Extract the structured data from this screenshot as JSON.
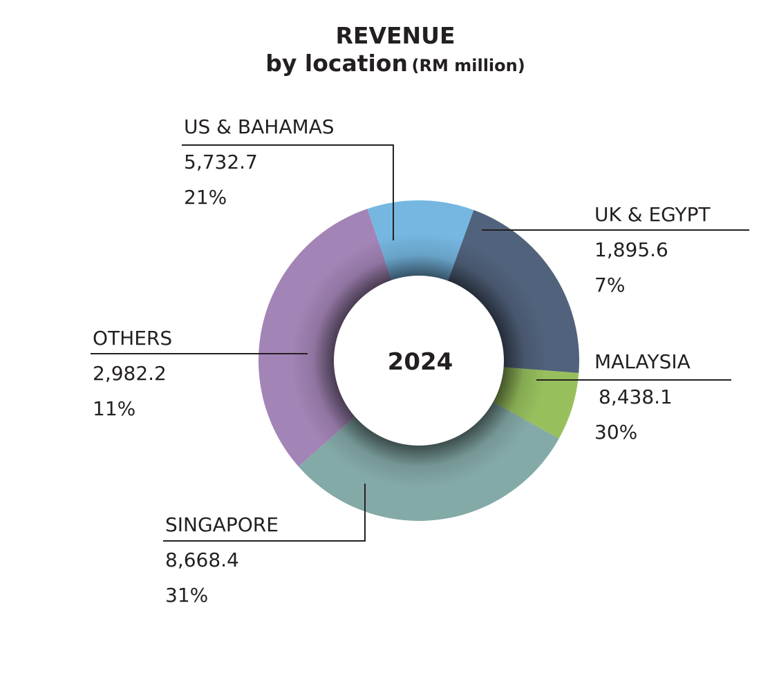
{
  "chart_data": {
    "type": "pie",
    "variant": "donut",
    "title": "REVENUE",
    "subtitle": "by location",
    "unit": "(RM million)",
    "center_label": "2024",
    "slices": [
      {
        "label": "US & BAHAMAS",
        "value": 5732.7,
        "value_text": "5,732.7",
        "percent": 21,
        "percent_text": "21%",
        "color": "#51627c"
      },
      {
        "label": "UK & EGYPT",
        "value": 1895.6,
        "value_text": "1,895.6",
        "percent": 7,
        "percent_text": "7%",
        "color": "#97c05d"
      },
      {
        "label": "MALAYSIA",
        "value": 8438.1,
        "value_text": "8,438.1",
        "percent": 30,
        "percent_text": "30%",
        "color": "#84aaa8"
      },
      {
        "label": "SINGAPORE",
        "value": 8668.4,
        "value_text": "8,668.4",
        "percent": 31,
        "percent_text": "31%",
        "color": "#a384b6"
      },
      {
        "label": "OTHERS",
        "value": 2982.2,
        "value_text": "2,982.2",
        "percent": 11,
        "percent_text": "11%",
        "color": "#76b7e2"
      }
    ]
  }
}
